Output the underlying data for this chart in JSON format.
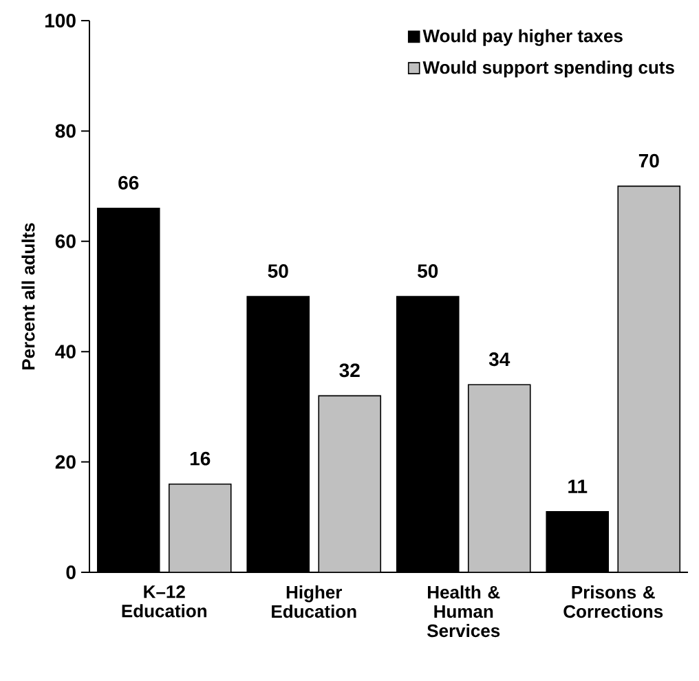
{
  "chart_data": {
    "type": "bar",
    "ylabel": "Percent all adults",
    "categories": [
      "K–12 Education",
      "Higher Education",
      "Health & Human Services",
      "Prisons & Corrections"
    ],
    "series": [
      {
        "name": "Would pay higher taxes",
        "color": "#000000",
        "values": [
          66,
          50,
          50,
          11
        ]
      },
      {
        "name": "Would support spending cuts",
        "color": "#c0c0c0",
        "values": [
          16,
          32,
          34,
          70
        ]
      }
    ],
    "ylim": [
      0,
      100
    ],
    "yticks": [
      0,
      20,
      40,
      60,
      80,
      100
    ],
    "data_labels": true,
    "legend": "top right",
    "grid": false
  }
}
